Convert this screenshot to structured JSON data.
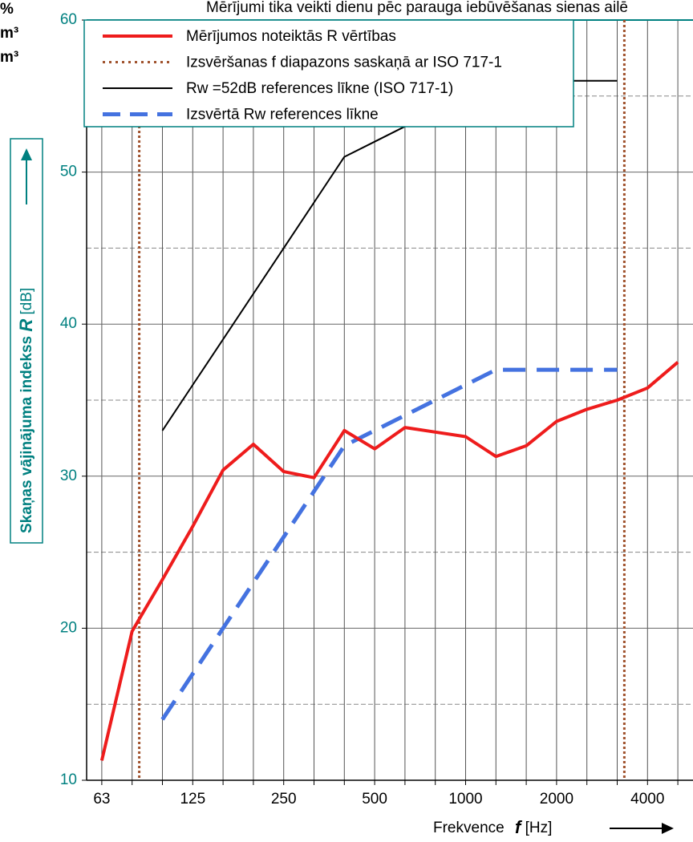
{
  "chart_data": {
    "type": "line",
    "title": "Mērījumi tika veikti dienu pēc parauga iebūvēšanas sienas ailē",
    "corner_notes": [
      "%",
      "m³",
      "m³"
    ],
    "ylabel": {
      "text": "Skaņas vājinājuma indekss",
      "symbol": "R",
      "unit": "[dB]"
    },
    "xlabel": {
      "text": "Frekvence",
      "symbol": "f",
      "unit": "[Hz]"
    },
    "categories": [
      "63",
      null,
      null,
      "125",
      null,
      null,
      "250",
      null,
      null,
      "500",
      null,
      null,
      "1000",
      null,
      null,
      "2000",
      null,
      null,
      "4000",
      null
    ],
    "ylim": [
      10,
      60
    ],
    "yticks": [
      10,
      20,
      30,
      40,
      50,
      60
    ],
    "yminorticks": [
      15,
      25,
      35,
      45,
      55
    ],
    "grid": true,
    "series": [
      {
        "name": "Mērījumos noteiktās R vērtības",
        "color": "#ee1c1c",
        "style": "solid",
        "width": 4,
        "values": [
          11.3,
          19.8,
          23.2,
          26.7,
          30.4,
          32.1,
          30.3,
          29.9,
          33.0,
          31.8,
          33.2,
          32.9,
          32.6,
          31.3,
          32.0,
          33.6,
          34.4,
          35.0,
          35.8,
          37.5
        ]
      },
      {
        "name": "Izsvēršanas f diapazons saskaņā ar ISO 717-1",
        "color": "#a0522d",
        "style": "dotted",
        "width": 3,
        "values": [
          null,
          null,
          null,
          null,
          null,
          null,
          null,
          null,
          null,
          null,
          null,
          null,
          null,
          null,
          null,
          null,
          null,
          null,
          null,
          null
        ]
      },
      {
        "name": "Rw =52dB references līkne (ISO 717-1)",
        "color": "#000000",
        "style": "solid",
        "width": 2,
        "values": [
          null,
          null,
          33,
          36,
          39,
          42,
          45,
          48,
          51,
          52,
          53,
          54,
          55,
          56,
          56,
          56,
          56,
          56,
          null,
          null
        ]
      },
      {
        "name": "Izsvērtā Rw  references līkne",
        "color": "#4472e0",
        "style": "dashed",
        "width": 5,
        "values": [
          null,
          null,
          14,
          17,
          20,
          23,
          26,
          29,
          32,
          33,
          34,
          35,
          36,
          37,
          37,
          37,
          37,
          37,
          null,
          null
        ]
      }
    ]
  }
}
